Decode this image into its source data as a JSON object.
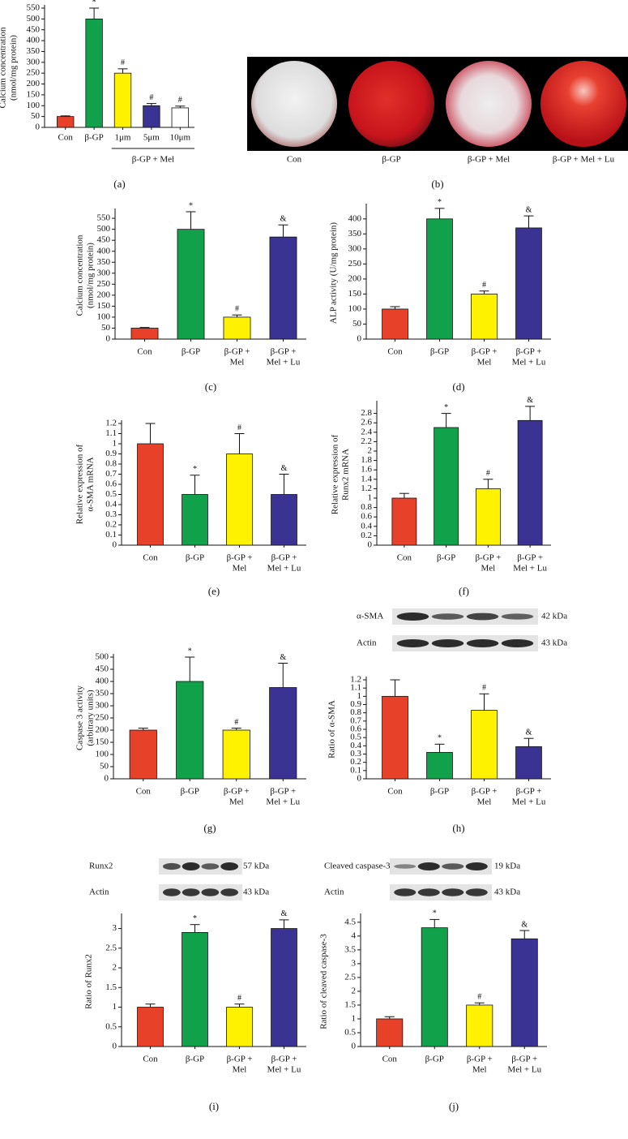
{
  "chart_data": [
    {
      "type": "bar",
      "panel": "(a)",
      "ylabel": "Calcium concentration\n(nmol/mg protein)",
      "categories": [
        "Con",
        "β-GP",
        "1μm",
        "5μm",
        "10μm"
      ],
      "group_label": "β-GP + Mel",
      "values": [
        50,
        500,
        250,
        100,
        90
      ],
      "errors": [
        3,
        50,
        20,
        10,
        8
      ],
      "markers": [
        null,
        "*",
        "#",
        "#",
        "#"
      ],
      "colors": [
        "#e8412a",
        "#12a14b",
        "#fff200",
        "#3a3393",
        "#ffffff"
      ],
      "ylim": [
        0,
        550
      ],
      "yticks": [
        0,
        50,
        100,
        150,
        200,
        250,
        300,
        350,
        400,
        450,
        500,
        550
      ]
    },
    {
      "type": "image",
      "panel": "(b)",
      "labels": [
        "Con",
        "β-GP",
        "β-GP + Mel",
        "β-GP + Mel + Lu"
      ]
    },
    {
      "type": "bar",
      "panel": "(c)",
      "ylabel": "Calcium concentration\n(nmol/mg protein)",
      "categories": [
        "Con",
        "β-GP",
        "β-GP +\nMel",
        "β-GP +\nMel + Lu"
      ],
      "values": [
        50,
        500,
        100,
        465
      ],
      "errors": [
        3,
        80,
        10,
        55
      ],
      "markers": [
        null,
        "*",
        "#",
        "&"
      ],
      "colors": [
        "#e8412a",
        "#12a14b",
        "#fff200",
        "#3a3393"
      ],
      "ylim": [
        0,
        580
      ],
      "yticks": [
        0,
        50,
        100,
        150,
        200,
        250,
        300,
        350,
        400,
        450,
        500,
        550
      ]
    },
    {
      "type": "bar",
      "panel": "(d)",
      "ylabel": "ALP activity (U/mg protein)",
      "categories": [
        "Con",
        "β-GP",
        "β-GP +\nMel",
        "β-GP +\nMel + Lu"
      ],
      "values": [
        100,
        400,
        150,
        370
      ],
      "errors": [
        8,
        35,
        10,
        40
      ],
      "markers": [
        null,
        "*",
        "#",
        "&"
      ],
      "colors": [
        "#e8412a",
        "#12a14b",
        "#fff200",
        "#3a3393"
      ],
      "ylim": [
        0,
        440
      ],
      "yticks": [
        0,
        50,
        100,
        150,
        200,
        250,
        300,
        350,
        400
      ]
    },
    {
      "type": "bar",
      "panel": "(e)",
      "ylabel": "Relative expression of\nα-SMA mRNA",
      "categories": [
        "Con",
        "β-GP",
        "β-GP +\nMel",
        "β-GP +\nMel + Lu"
      ],
      "values": [
        1.0,
        0.5,
        0.9,
        0.5
      ],
      "errors": [
        0.2,
        0.19,
        0.2,
        0.2
      ],
      "markers": [
        null,
        "*",
        "#",
        "&"
      ],
      "colors": [
        "#e8412a",
        "#12a14b",
        "#fff200",
        "#3a3393"
      ],
      "ylim": [
        0,
        1.2
      ],
      "yticks": [
        0,
        0.1,
        0.2,
        0.3,
        0.4,
        0.5,
        0.6,
        0.7,
        0.8,
        0.9,
        1,
        1.1,
        1.2
      ]
    },
    {
      "type": "bar",
      "panel": "(f)",
      "ylabel": "Relative expression of\nRunx2 mRNA",
      "categories": [
        "Con",
        "β-GP",
        "β-GP +\nMel",
        "β-GP +\nMel + Lu"
      ],
      "values": [
        1.0,
        2.5,
        1.2,
        2.65
      ],
      "errors": [
        0.1,
        0.3,
        0.2,
        0.3
      ],
      "markers": [
        null,
        "*",
        "#",
        "&"
      ],
      "colors": [
        "#e8412a",
        "#12a14b",
        "#fff200",
        "#3a3393"
      ],
      "ylim": [
        0,
        3
      ],
      "yticks": [
        0,
        0.2,
        0.4,
        0.6,
        0.8,
        1,
        1.2,
        1.4,
        1.6,
        1.8,
        2,
        2.2,
        2.4,
        2.6,
        2.8
      ]
    },
    {
      "type": "bar",
      "panel": "(g)",
      "ylabel": "Caspase 3 activity\n(arbitrary units)",
      "categories": [
        "Con",
        "β-GP",
        "β-GP +\nMel",
        "β-GP +\nMel + Lu"
      ],
      "values": [
        200,
        400,
        200,
        375
      ],
      "errors": [
        8,
        100,
        8,
        100
      ],
      "markers": [
        null,
        "*",
        "#",
        "&"
      ],
      "colors": [
        "#e8412a",
        "#12a14b",
        "#fff200",
        "#3a3393"
      ],
      "ylim": [
        0,
        500
      ],
      "yticks": [
        0,
        50,
        100,
        150,
        200,
        250,
        300,
        350,
        400,
        450,
        500
      ]
    },
    {
      "type": "bar",
      "panel": "(h)",
      "ylabel": "Ratio of α-SMA",
      "blot": [
        {
          "label": "α-SMA",
          "size": "42 kDa"
        },
        {
          "label": "Actin",
          "size": "43 kDa"
        }
      ],
      "categories": [
        "Con",
        "β-GP",
        "β-GP +\nMel",
        "β-GP +\nMel + Lu"
      ],
      "values": [
        1.0,
        0.32,
        0.83,
        0.39
      ],
      "errors": [
        0.2,
        0.1,
        0.2,
        0.1
      ],
      "markers": [
        null,
        "*",
        "#",
        "&"
      ],
      "colors": [
        "#e8412a",
        "#12a14b",
        "#fff200",
        "#3a3393"
      ],
      "ylim": [
        0,
        1.2
      ],
      "yticks": [
        0,
        0.1,
        0.2,
        0.3,
        0.4,
        0.5,
        0.6,
        0.7,
        0.8,
        0.9,
        1,
        1.1,
        1.2
      ]
    },
    {
      "type": "bar",
      "panel": "(i)",
      "ylabel": "Ratio of Runx2",
      "blot": [
        {
          "label": "Runx2",
          "size": "57 kDa"
        },
        {
          "label": "Actin",
          "size": "43 kDa"
        }
      ],
      "categories": [
        "Con",
        "β-GP",
        "β-GP +\nMel",
        "β-GP +\nMel + Lu"
      ],
      "values": [
        1.0,
        2.9,
        1.0,
        3.0
      ],
      "errors": [
        0.08,
        0.2,
        0.08,
        0.22
      ],
      "markers": [
        null,
        "*",
        "#",
        "&"
      ],
      "colors": [
        "#e8412a",
        "#12a14b",
        "#fff200",
        "#3a3393"
      ],
      "ylim": [
        0,
        3.3
      ],
      "yticks": [
        0,
        0.5,
        1,
        1.5,
        2,
        2.5,
        3
      ]
    },
    {
      "type": "bar",
      "panel": "(j)",
      "ylabel": "Ratio of cleaved caspase-3",
      "blot": [
        {
          "label": "Cleaved caspase-3",
          "size": "19 kDa"
        },
        {
          "label": "Actin",
          "size": "43 kDa"
        }
      ],
      "categories": [
        "Con",
        "β-GP",
        "β-GP +\nMel",
        "β-GP +\nMel + Lu"
      ],
      "values": [
        1.0,
        4.3,
        1.5,
        3.9
      ],
      "errors": [
        0.08,
        0.3,
        0.08,
        0.3
      ],
      "markers": [
        null,
        "*",
        "#",
        "&"
      ],
      "colors": [
        "#e8412a",
        "#12a14b",
        "#fff200",
        "#3a3393"
      ],
      "ylim": [
        0,
        4.7
      ],
      "yticks": [
        0,
        0.5,
        1,
        1.5,
        2,
        2.5,
        3,
        3.5,
        4,
        4.5
      ]
    }
  ]
}
